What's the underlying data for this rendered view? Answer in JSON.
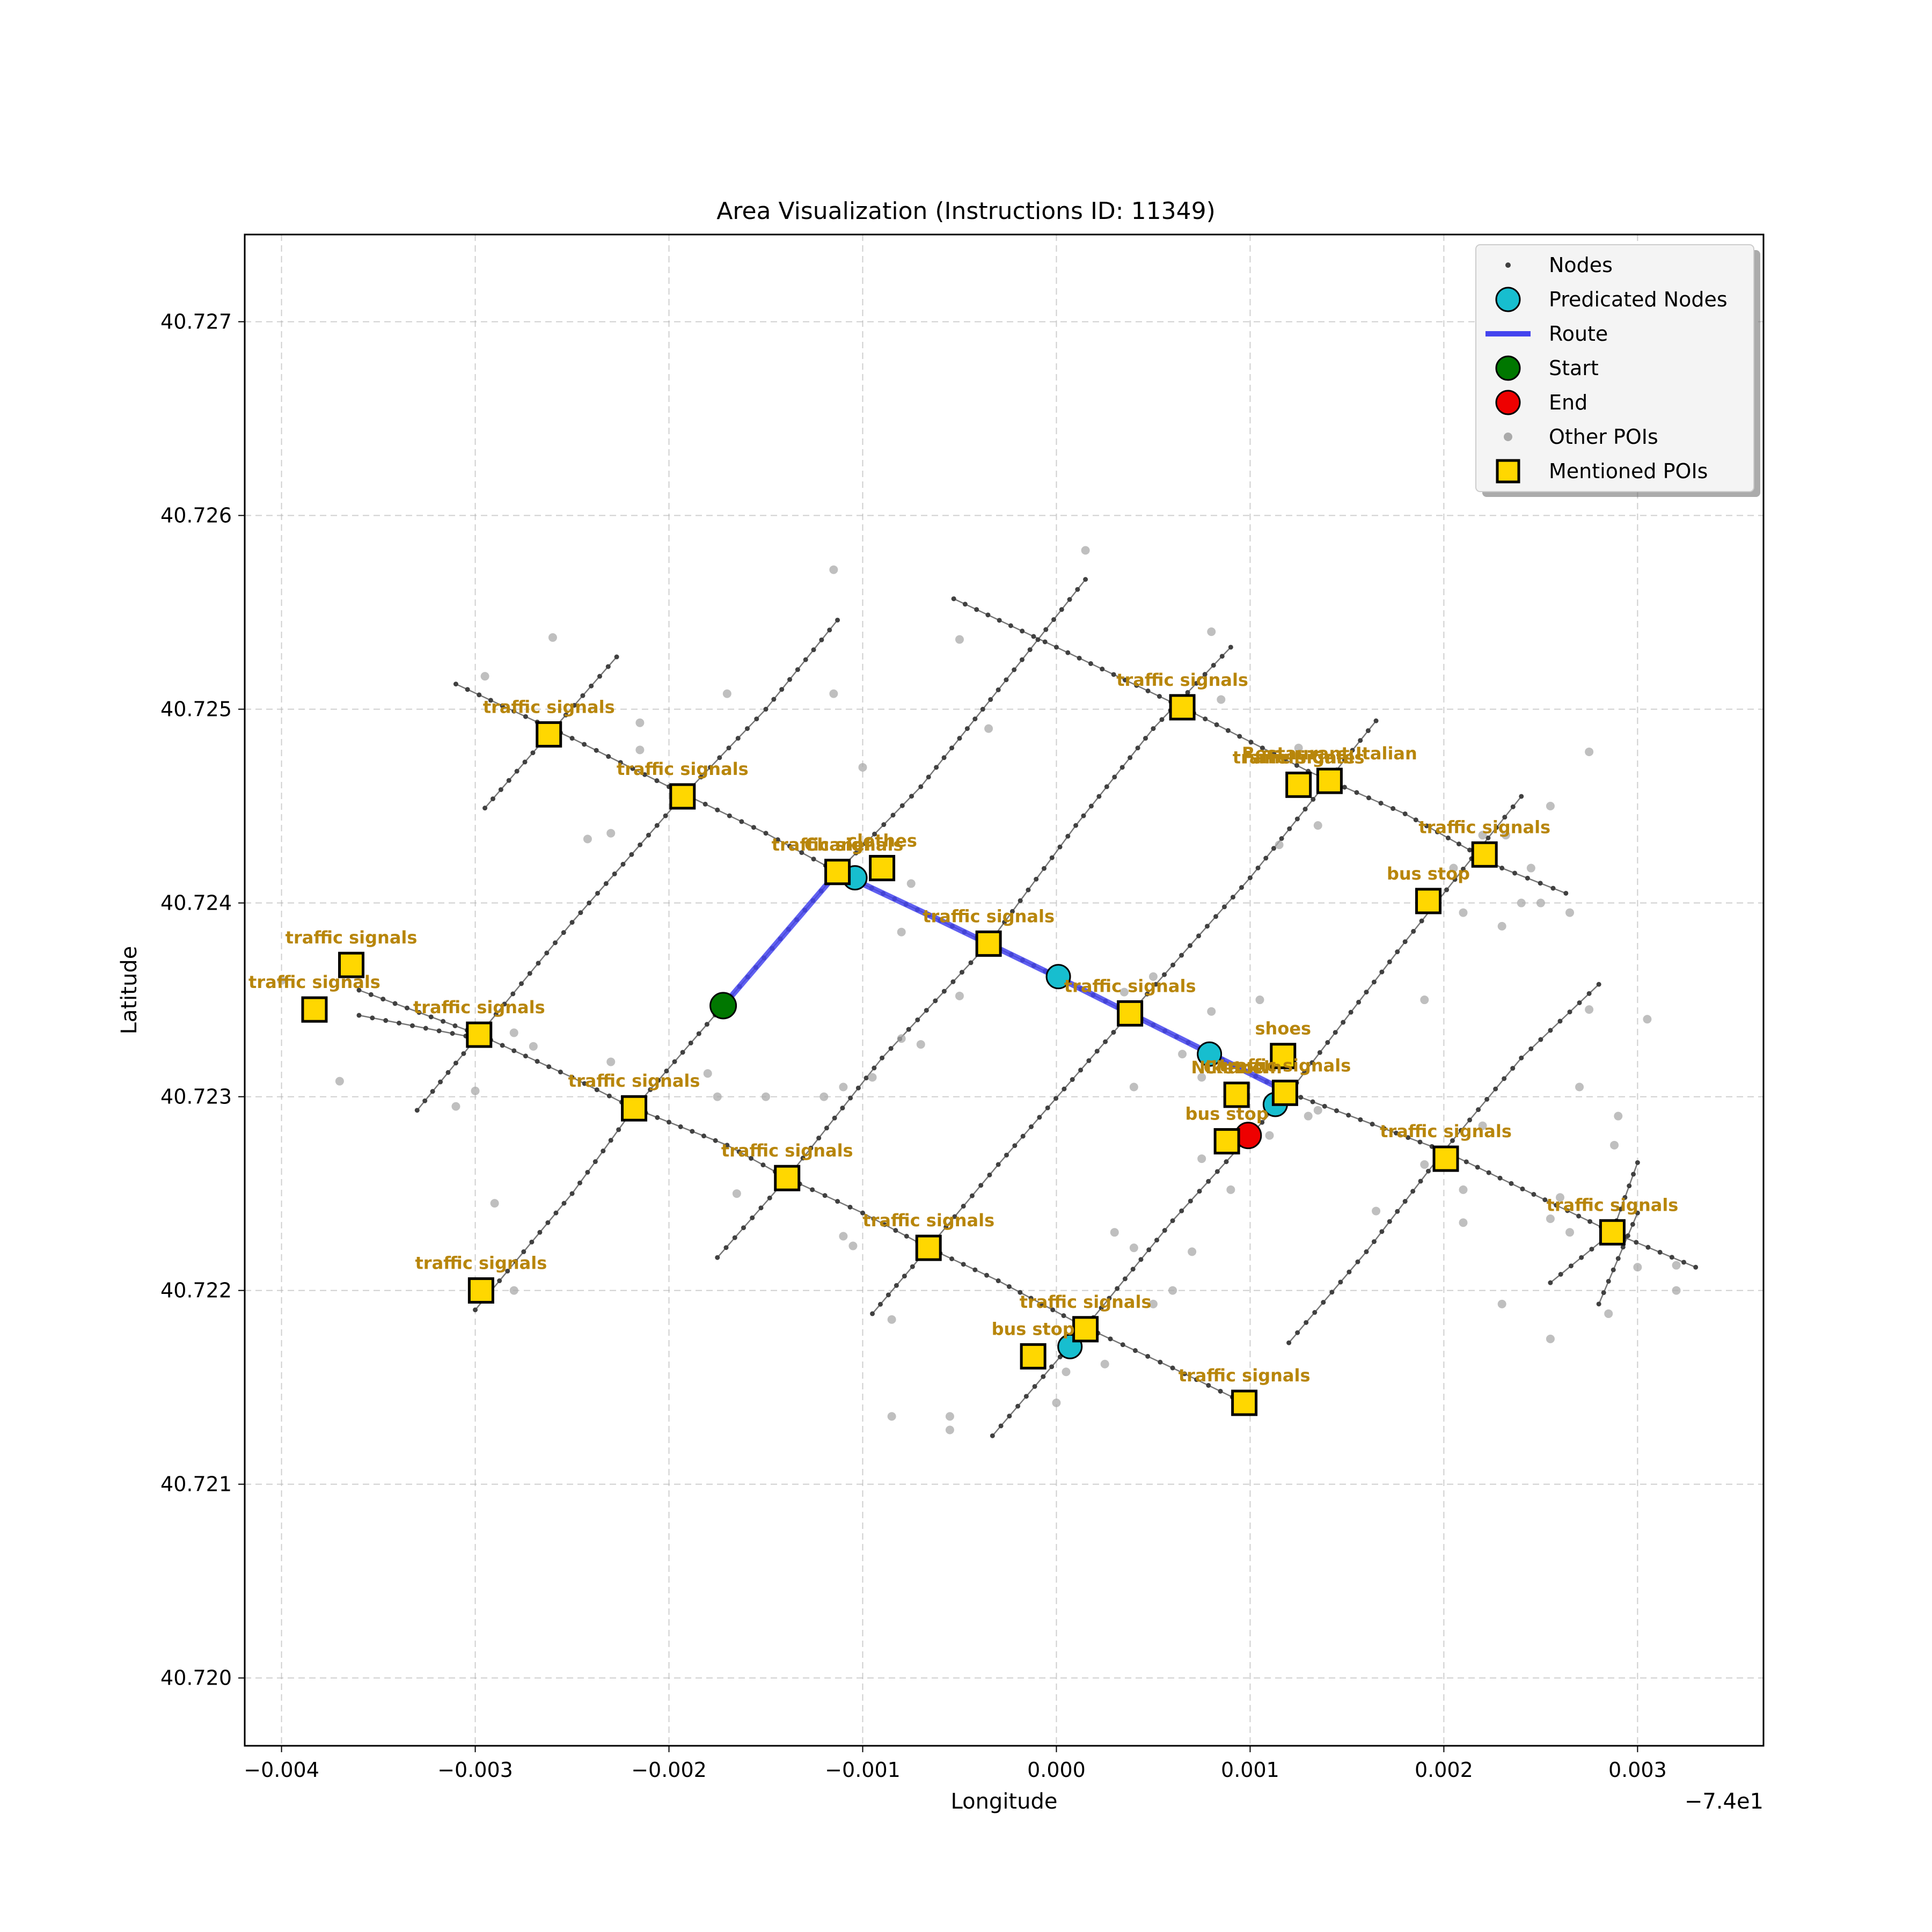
{
  "chart_data": {
    "type": "scatter",
    "title": "Area Visualization (Instructions ID: 11349)",
    "xlabel": "Longitude",
    "ylabel": "Latitude",
    "x_offset_label": "−7.4e1",
    "xlim": [
      -0.00419,
      0.00365
    ],
    "ylim": [
      40.71965,
      40.72745
    ],
    "xticks": [
      -0.004,
      -0.003,
      -0.002,
      -0.001,
      0.0,
      0.001,
      0.002,
      0.003
    ],
    "xtick_labels": [
      "−0.004",
      "−0.003",
      "−0.002",
      "−0.001",
      "0.000",
      "0.001",
      "0.002",
      "0.003"
    ],
    "yticks": [
      40.72,
      40.721,
      40.722,
      40.723,
      40.724,
      40.725,
      40.726,
      40.727
    ],
    "ytick_labels": [
      "40.720",
      "40.721",
      "40.722",
      "40.723",
      "40.724",
      "40.725",
      "40.726",
      "40.727"
    ],
    "grid": true,
    "legend_position": "top-right",
    "legend": [
      {
        "label": "Nodes",
        "marker": "small-dot",
        "color": "#404040"
      },
      {
        "label": "Predicated Nodes",
        "marker": "circle",
        "color": "#17becf"
      },
      {
        "label": "Route",
        "marker": "line",
        "color": "#4444ee"
      },
      {
        "label": "Start",
        "marker": "circle",
        "color": "#007700"
      },
      {
        "label": "End",
        "marker": "circle",
        "color": "#ee0000"
      },
      {
        "label": "Other POIs",
        "marker": "dot",
        "color": "#aaaaaa"
      },
      {
        "label": "Mentioned POIs",
        "marker": "square",
        "color": "#ffd700"
      }
    ],
    "colors": {
      "nodes": "#404040",
      "streets": "#555555",
      "predicated": "#17becf",
      "route": "#4444ee",
      "start": "#007700",
      "end": "#ee0000",
      "other_poi": "#aaaaaa",
      "mentioned_poi": "#ffd700",
      "poi_label": "#b8860b"
    },
    "streets": [
      [
        [
          -0.0031,
          40.72513
        ],
        [
          -0.0025,
          40.72485
        ],
        [
          -0.002,
          40.7246
        ],
        [
          -0.0015,
          40.72436
        ],
        [
          -0.00113,
          40.72416
        ],
        [
          -0.0006,
          40.72391
        ],
        [
          -0.00035,
          40.72379
        ],
        [
          0.0,
          40.72362
        ],
        [
          0.00038,
          40.72343
        ],
        [
          0.0008,
          40.72322
        ],
        [
          0.0012,
          40.72302
        ],
        [
          0.002,
          40.72272
        ],
        [
          0.00287,
          40.7223
        ],
        [
          0.0033,
          40.72212
        ]
      ],
      [
        [
          -0.0036,
          40.72355
        ],
        [
          -0.00298,
          40.72332
        ],
        [
          -0.0025,
          40.7231
        ],
        [
          -0.00218,
          40.72294
        ],
        [
          -0.0017,
          40.72275
        ],
        [
          -0.00139,
          40.72258
        ],
        [
          -0.001,
          40.7224
        ],
        [
          -0.00066,
          40.72222
        ],
        [
          -0.0003,
          40.72205
        ],
        [
          0.00015,
          40.72181
        ],
        [
          0.0006,
          40.7216
        ],
        [
          0.00097,
          40.72142
        ]
      ],
      [
        [
          -0.0036,
          40.72342
        ],
        [
          -0.00298,
          40.7233
        ]
      ],
      [
        [
          -0.00053,
          40.72557
        ],
        [
          0.0,
          40.72532
        ],
        [
          0.00065,
          40.72501
        ],
        [
          0.0013,
          40.72468
        ],
        [
          0.0018,
          40.72446
        ],
        [
          0.0023,
          40.72418
        ],
        [
          0.00263,
          40.72405
        ]
      ],
      [
        [
          -0.00295,
          40.72449
        ],
        [
          -0.00262,
          40.72487
        ],
        [
          -0.00227,
          40.72527
        ]
      ],
      [
        [
          -0.0033,
          40.72293
        ],
        [
          -0.00298,
          40.72332
        ],
        [
          -0.0025,
          40.7239
        ],
        [
          -0.00193,
          40.72455
        ],
        [
          -0.0015,
          40.725
        ],
        [
          -0.00113,
          40.72546
        ]
      ],
      [
        [
          -0.003,
          40.7219
        ],
        [
          -0.0025,
          40.7225
        ],
        [
          -0.00218,
          40.72294
        ],
        [
          -0.00172,
          40.72347
        ],
        [
          -0.00113,
          40.72416
        ]
      ],
      [
        [
          -0.00175,
          40.72217
        ],
        [
          -0.00139,
          40.72258
        ],
        [
          -0.0009,
          40.7232
        ],
        [
          -0.00035,
          40.72379
        ],
        [
          0.0001,
          40.7244
        ],
        [
          0.0005,
          40.7249
        ],
        [
          0.0009,
          40.72532
        ]
      ],
      [
        [
          -0.00095,
          40.72188
        ],
        [
          -0.00066,
          40.72222
        ],
        [
          -0.0003,
          40.72265
        ],
        [
          0.00038,
          40.72343
        ],
        [
          0.001,
          40.72413
        ],
        [
          0.00165,
          40.72494
        ]
      ],
      [
        [
          -0.00033,
          40.72125
        ],
        [
          0.00015,
          40.72181
        ],
        [
          0.0006,
          40.72236
        ],
        [
          0.0012,
          40.72302
        ],
        [
          0.0018,
          40.7238
        ],
        [
          0.0024,
          40.72455
        ]
      ],
      [
        [
          0.0012,
          40.72173
        ],
        [
          0.0016,
          40.7222
        ],
        [
          0.002,
          40.72272
        ],
        [
          0.0024,
          40.7232
        ],
        [
          0.0028,
          40.72358
        ]
      ],
      [
        [
          -0.00113,
          40.72416
        ],
        [
          -0.0007,
          40.7246
        ],
        [
          -0.0003,
          40.7251
        ],
        [
          0.00015,
          40.72567
        ]
      ],
      [
        [
          0.00255,
          40.72204
        ],
        [
          0.00287,
          40.7223
        ],
        [
          0.003,
          40.72266
        ]
      ],
      [
        [
          0.0028,
          40.72193
        ],
        [
          0.003,
          40.7224
        ]
      ]
    ],
    "route": [
      [
        -0.00172,
        40.72347
      ],
      [
        -0.00113,
        40.72416
      ],
      [
        -0.0006,
        40.72391
      ],
      [
        0.0,
        40.72362
      ],
      [
        0.0008,
        40.72322
      ],
      [
        0.0012,
        40.72302
      ]
    ],
    "start": [
      -0.00172,
      40.72347
    ],
    "end": [
      0.00099,
      40.7228
    ],
    "predicated_nodes": [
      [
        -0.00104,
        40.72413
      ],
      [
        1e-05,
        40.72362
      ],
      [
        0.00079,
        40.72322
      ],
      [
        0.00113,
        40.72296
      ],
      [
        7e-05,
        40.72171
      ]
    ],
    "other_pois": [
      [
        -0.00295,
        40.72517
      ],
      [
        -0.0026,
        40.72537
      ],
      [
        -0.00215,
        40.72493
      ],
      [
        -0.00215,
        40.72479
      ],
      [
        -0.0017,
        40.72508
      ],
      [
        -0.00115,
        40.72572
      ],
      [
        -0.00115,
        40.72508
      ],
      [
        -0.001,
        40.7247
      ],
      [
        -0.00075,
        40.7241
      ],
      [
        -0.0008,
        40.72385
      ],
      [
        0.00015,
        40.72582
      ],
      [
        0.0008,
        40.7254
      ],
      [
        0.00085,
        40.72505
      ],
      [
        0.00115,
        40.7243
      ],
      [
        0.00275,
        40.72345
      ],
      [
        -0.00242,
        40.72433
      ],
      [
        -0.0023,
        40.72436
      ],
      [
        -0.0005,
        40.72536
      ],
      [
        -0.00035,
        40.7249
      ],
      [
        -0.0018,
        40.72312
      ],
      [
        -0.0028,
        40.72333
      ],
      [
        -0.003,
        40.72303
      ],
      [
        -0.0031,
        40.72295
      ],
      [
        -0.0037,
        40.72308
      ],
      [
        -0.004,
        40.7236
      ],
      [
        -0.0028,
        40.722
      ],
      [
        -0.0023,
        40.72318
      ],
      [
        -0.0027,
        40.72326
      ],
      [
        -0.0029,
        40.72245
      ],
      [
        -0.00175,
        40.723
      ],
      [
        -0.0008,
        40.7233
      ],
      [
        -0.0007,
        40.72327
      ],
      [
        -0.0005,
        40.72352
      ],
      [
        -0.0011,
        40.72305
      ],
      [
        -0.00095,
        40.7231
      ],
      [
        -0.0011,
        40.72228
      ],
      [
        -0.00105,
        40.72223
      ],
      [
        -0.00165,
        40.7225
      ],
      [
        -0.00085,
        40.72135
      ],
      [
        -0.00055,
        40.72135
      ],
      [
        -0.00055,
        40.72128
      ],
      [
        -0.00085,
        40.72185
      ],
      [
        0.0,
        40.72142
      ],
      [
        5e-05,
        40.72158
      ],
      [
        0.00025,
        40.72162
      ],
      [
        0.0003,
        40.7223
      ],
      [
        0.0004,
        40.72222
      ],
      [
        0.0006,
        40.722
      ],
      [
        0.0005,
        40.72193
      ],
      [
        0.0007,
        40.7222
      ],
      [
        0.00075,
        40.72268
      ],
      [
        0.0009,
        40.72252
      ],
      [
        0.0011,
        40.7228
      ],
      [
        0.0013,
        40.7229
      ],
      [
        0.0005,
        40.72362
      ],
      [
        0.00035,
        40.72354
      ],
      [
        0.0004,
        40.72305
      ],
      [
        0.00065,
        40.72322
      ],
      [
        0.00075,
        40.7231
      ],
      [
        0.0008,
        40.72344
      ],
      [
        0.00105,
        40.7235
      ],
      [
        0.00125,
        40.7248
      ],
      [
        0.00135,
        40.7244
      ],
      [
        0.0019,
        40.7235
      ],
      [
        0.00205,
        40.72418
      ],
      [
        0.0021,
        40.72395
      ],
      [
        0.0023,
        40.72388
      ],
      [
        0.0022,
        40.72435
      ],
      [
        0.00232,
        40.72435
      ],
      [
        0.0024,
        40.724
      ],
      [
        0.00245,
        40.72418
      ],
      [
        0.0025,
        40.724
      ],
      [
        0.00255,
        40.7245
      ],
      [
        0.00265,
        40.72395
      ],
      [
        0.00275,
        40.72478
      ],
      [
        0.00305,
        40.7234
      ],
      [
        0.0019,
        40.72265
      ],
      [
        0.0021,
        40.72252
      ],
      [
        0.0022,
        40.72285
      ],
      [
        0.00255,
        40.72237
      ],
      [
        0.0026,
        40.72248
      ],
      [
        0.00265,
        40.7223
      ],
      [
        0.00285,
        40.72188
      ],
      [
        0.0029,
        40.7229
      ],
      [
        0.00288,
        40.72275
      ],
      [
        0.003,
        40.72212
      ],
      [
        0.0032,
        40.72213
      ],
      [
        0.0032,
        40.722
      ],
      [
        0.0023,
        40.72193
      ],
      [
        0.00255,
        40.72175
      ],
      [
        0.0027,
        40.72305
      ],
      [
        -0.0015,
        40.723
      ],
      [
        -0.0012,
        40.723
      ],
      [
        0.0021,
        40.72235
      ],
      [
        0.00165,
        40.72241
      ],
      [
        0.00135,
        40.72293
      ]
    ],
    "mentioned_pois": [
      {
        "label": "traffic signals",
        "x": -0.00262,
        "y": 40.72487
      },
      {
        "label": "traffic signals",
        "x": -0.00193,
        "y": 40.72455
      },
      {
        "label": "traffic signals",
        "x": -0.00113,
        "y": 40.72416
      },
      {
        "label": "Chanel",
        "x": -0.00113,
        "y": 40.72416
      },
      {
        "label": "clothes",
        "x": -0.0009,
        "y": 40.72418
      },
      {
        "label": "traffic signals",
        "x": 0.00065,
        "y": 40.72501
      },
      {
        "label": "Fanelli Cafe",
        "x": 0.00125,
        "y": 40.72461
      },
      {
        "label": "traffic signals",
        "x": 0.00125,
        "y": 40.72461
      },
      {
        "label": "Restaurant Italian",
        "x": 0.00141,
        "y": 40.72463
      },
      {
        "label": "traffic signals",
        "x": 0.00221,
        "y": 40.72425
      },
      {
        "label": "bus stop",
        "x": 0.00192,
        "y": 40.72401
      },
      {
        "label": "traffic signals",
        "x": -0.00364,
        "y": 40.72368
      },
      {
        "label": "traffic signals",
        "x": -0.00383,
        "y": 40.72345
      },
      {
        "label": "traffic signals",
        "x": -0.00298,
        "y": 40.72332
      },
      {
        "label": "traffic signals",
        "x": -0.00035,
        "y": 40.72379
      },
      {
        "label": "traffic signals",
        "x": 0.00038,
        "y": 40.72343
      },
      {
        "label": "Niketown",
        "x": 0.00093,
        "y": 40.72301
      },
      {
        "label": "shoes",
        "x": 0.00117,
        "y": 40.72321
      },
      {
        "label": "Chanel",
        "x": 0.00093,
        "y": 40.72301
      },
      {
        "label": "traffic signals",
        "x": 0.00118,
        "y": 40.72302
      },
      {
        "label": "bus stop",
        "x": 0.00088,
        "y": 40.72277
      },
      {
        "label": "traffic signals",
        "x": -0.00218,
        "y": 40.72294
      },
      {
        "label": "traffic signals",
        "x": -0.00139,
        "y": 40.72258
      },
      {
        "label": "traffic signals",
        "x": 0.00201,
        "y": 40.72268
      },
      {
        "label": "traffic signals",
        "x": 0.00287,
        "y": 40.7223
      },
      {
        "label": "traffic signals",
        "x": -0.00066,
        "y": 40.72222
      },
      {
        "label": "traffic signals",
        "x": -0.00297,
        "y": 40.722
      },
      {
        "label": "traffic signals",
        "x": 0.00015,
        "y": 40.7218
      },
      {
        "label": "bus stop",
        "x": -0.00012,
        "y": 40.72166
      },
      {
        "label": "traffic signals",
        "x": 0.00097,
        "y": 40.72142
      }
    ]
  }
}
